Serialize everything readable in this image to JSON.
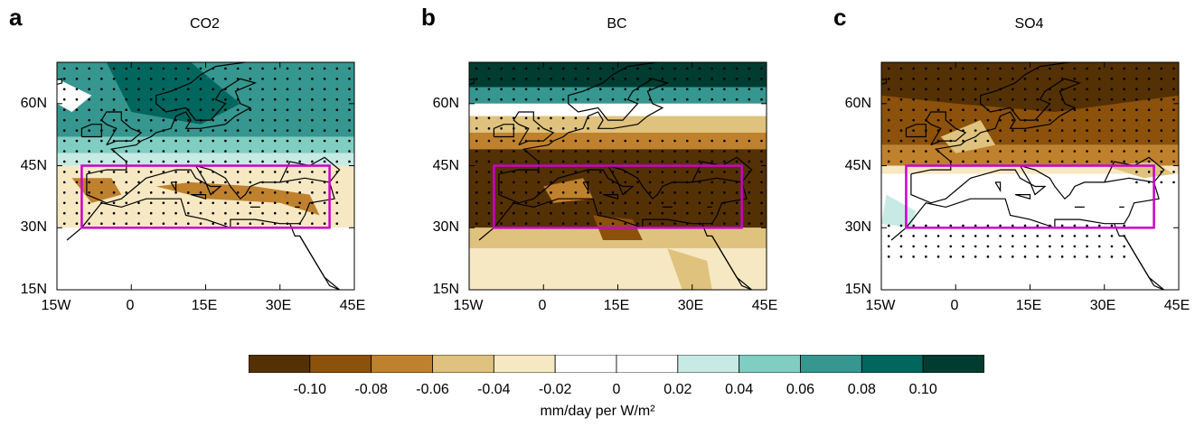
{
  "panels": [
    {
      "letter": "a",
      "title": "CO2"
    },
    {
      "letter": "b",
      "title": "BC"
    },
    {
      "letter": "c",
      "title": "SO4"
    }
  ],
  "axes": {
    "lat_labels": [
      "15N",
      "30N",
      "45N",
      "60N"
    ],
    "lon_labels": [
      "15W",
      "0",
      "15E",
      "30E",
      "45E"
    ],
    "lon_range": [
      -15,
      45
    ],
    "lat_range": [
      15,
      70
    ]
  },
  "region_box": {
    "color": "#cc00cc",
    "lon": [
      -10,
      40
    ],
    "lat": [
      30,
      45
    ]
  },
  "colorbar": {
    "colors": [
      "#543005",
      "#8c510a",
      "#bf812d",
      "#dfc27d",
      "#f6e8c3",
      "#ffffff",
      "#ffffff",
      "#c7eae5",
      "#80cdc1",
      "#35978f",
      "#01665e",
      "#003c30"
    ],
    "labels": [
      "-0.10",
      "-0.08",
      "-0.06",
      "-0.04",
      "-0.02",
      "0",
      "0.02",
      "0.04",
      "0.06",
      "0.08",
      "0.10"
    ],
    "units": "mm/day per W/m²"
  }
}
